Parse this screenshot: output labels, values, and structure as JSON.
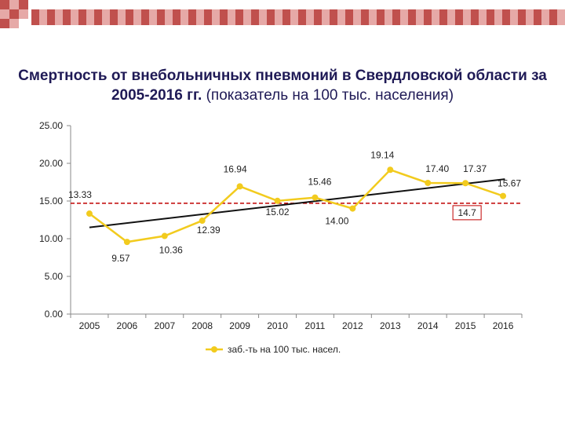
{
  "title_bold": "Смертность от внебольничных пневмоний в Свердловской области  за 2005-2016 гг.",
  "title_normal": "(показатель на 100 тыс. населения)",
  "colors": {
    "title": "#1f1a56",
    "series": "#f2cb1e",
    "trend": "#111111",
    "reference": "#c00000",
    "deco_red": "#c0504d",
    "deco_light": "#e6a9a7"
  },
  "chart_data": {
    "type": "line",
    "categories": [
      "2005",
      "2006",
      "2007",
      "2008",
      "2009",
      "2010",
      "2011",
      "2012",
      "2013",
      "2014",
      "2015",
      "2016"
    ],
    "series": [
      {
        "name": "заб.-ть на 100 тыс. насел.",
        "values": [
          13.33,
          9.57,
          10.36,
          12.39,
          16.94,
          15.02,
          15.46,
          14.0,
          19.14,
          17.4,
          17.37,
          15.67
        ]
      }
    ],
    "data_labels": [
      "13.33",
      "9.57",
      "10.36",
      "12.39",
      "16.94",
      "15.02",
      "15.46",
      "14.00",
      "19.14",
      "17.40",
      "17.37",
      "15.67"
    ],
    "ylim": [
      0,
      25
    ],
    "yticks": [
      "0.00",
      "5.00",
      "10.00",
      "15.00",
      "20.00",
      "25.00"
    ],
    "ytick_values": [
      0,
      5,
      10,
      15,
      20,
      25
    ],
    "reference_line": {
      "value": 14.7,
      "label": "14.7",
      "style": "dashed"
    },
    "trendline": {
      "start": 11.5,
      "end": 17.9
    },
    "legend": {
      "position": "bottom",
      "label": "заб.-ть на 100 тыс. насел."
    },
    "xlabel": "",
    "ylabel": ""
  }
}
